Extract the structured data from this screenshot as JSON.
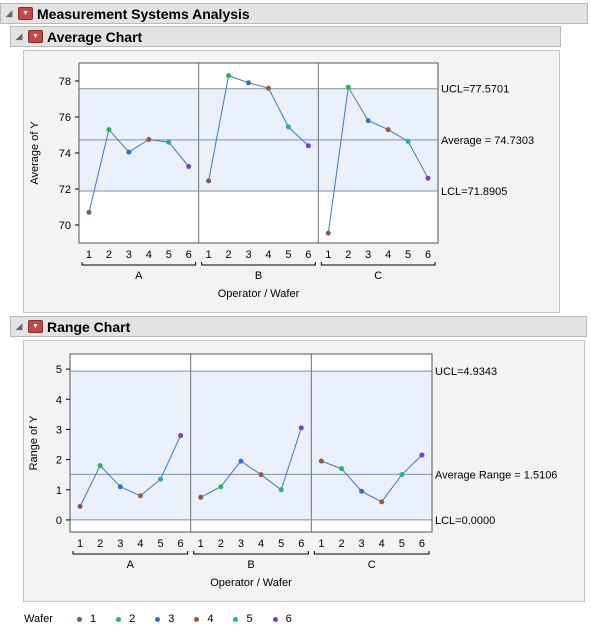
{
  "report": {
    "title": "Measurement Systems Analysis"
  },
  "sections": [
    {
      "title": "Average Chart"
    },
    {
      "title": "Range Chart"
    }
  ],
  "colors": {
    "wafer_1": "#8b5a46",
    "wafer_2": "#21b85a",
    "wafer_3": "#2f6fd6",
    "wafer_4": "#a05a3c",
    "wafer_5": "#1fb3a0",
    "wafer_6": "#7a3fd0",
    "line": "#3a78d8",
    "plot_bg": "#eaf1fc",
    "limit_line": "#7f8fa3"
  },
  "legend": {
    "label": "Wafer",
    "items": [
      {
        "name": "1",
        "color": "#8b5a46"
      },
      {
        "name": "2",
        "color": "#21b85a"
      },
      {
        "name": "3",
        "color": "#2f6fd6"
      },
      {
        "name": "4",
        "color": "#a05a3c"
      },
      {
        "name": "5",
        "color": "#1fb3a0"
      },
      {
        "name": "6",
        "color": "#7a3fd0"
      }
    ]
  },
  "chart_data": [
    {
      "type": "line",
      "title": "Average Chart",
      "xlabel": "Operator / Wafer",
      "ylabel": "Average of Y",
      "groups": [
        "A",
        "B",
        "C"
      ],
      "wafers": [
        "1",
        "2",
        "3",
        "4",
        "5",
        "6"
      ],
      "values": [
        [
          70.7,
          75.3,
          74.05,
          74.75,
          74.6,
          73.25
        ],
        [
          72.45,
          78.3,
          77.9,
          77.6,
          75.45,
          74.4
        ],
        [
          69.55,
          77.65,
          75.8,
          75.3,
          74.65,
          72.6
        ]
      ],
      "ylim": [
        69,
        79
      ],
      "yticks": [
        70,
        72,
        74,
        76,
        78
      ],
      "center": 74.7303,
      "ucl": 77.5701,
      "lcl": 71.8905,
      "limit_labels": {
        "ucl": "UCL=77.5701",
        "center": "Average = 74.7303",
        "lcl": "LCL=71.8905"
      }
    },
    {
      "type": "line",
      "title": "Range Chart",
      "xlabel": "Operator / Wafer",
      "ylabel": "Range of Y",
      "groups": [
        "A",
        "B",
        "C"
      ],
      "wafers": [
        "1",
        "2",
        "3",
        "4",
        "5",
        "6"
      ],
      "values": [
        [
          0.45,
          1.8,
          1.1,
          0.8,
          1.35,
          2.8
        ],
        [
          0.75,
          1.1,
          1.95,
          1.5,
          1.0,
          3.05
        ],
        [
          1.95,
          1.7,
          0.95,
          0.6,
          1.5,
          2.15
        ]
      ],
      "ylim": [
        -0.4,
        5.5
      ],
      "yticks": [
        0,
        1,
        2,
        3,
        4,
        5
      ],
      "center": 1.5106,
      "ucl": 4.9343,
      "lcl": 0,
      "limit_labels": {
        "ucl": "UCL=4.9343",
        "center": "Average Range = 1.5106",
        "lcl": "LCL=0.0000"
      }
    }
  ]
}
